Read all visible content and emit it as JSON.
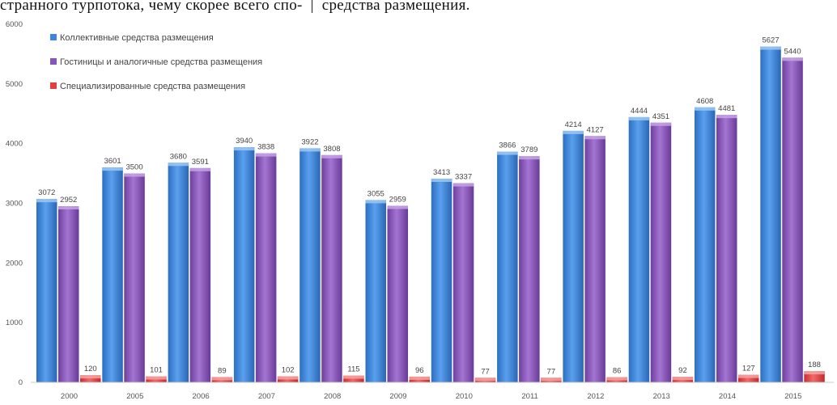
{
  "header": {
    "left_text": "странного турпотока, чему скорее всего спо-",
    "separator": "|",
    "right_text": "средства размещения."
  },
  "chart_data": {
    "type": "bar",
    "title": "",
    "xlabel": "",
    "ylabel": "",
    "categories": [
      "2000",
      "2005",
      "2006",
      "2007",
      "2008",
      "2009",
      "2010",
      "2011",
      "2012",
      "2013",
      "2014",
      "2015"
    ],
    "ylim": [
      0,
      6000
    ],
    "yticks": [
      0,
      1000,
      2000,
      3000,
      4000,
      5000,
      6000
    ],
    "grid": false,
    "legend_position": "top-left",
    "series": [
      {
        "name": "Коллективные средства размещения",
        "color": "#3f86d8",
        "values": [
          3072,
          3601,
          3680,
          3940,
          3922,
          3055,
          3413,
          3866,
          4214,
          4444,
          4608,
          5627
        ]
      },
      {
        "name": "Гостиницы и аналогичные средства размещения",
        "color": "#8a55b8",
        "values": [
          2952,
          3500,
          3591,
          3838,
          3808,
          2959,
          3337,
          3789,
          4127,
          4351,
          4481,
          5440
        ]
      },
      {
        "name": "Специализированные средства размещения",
        "color": "#e04040",
        "values": [
          120,
          101,
          89,
          102,
          115,
          96,
          77,
          77,
          86,
          92,
          127,
          188
        ]
      }
    ]
  }
}
